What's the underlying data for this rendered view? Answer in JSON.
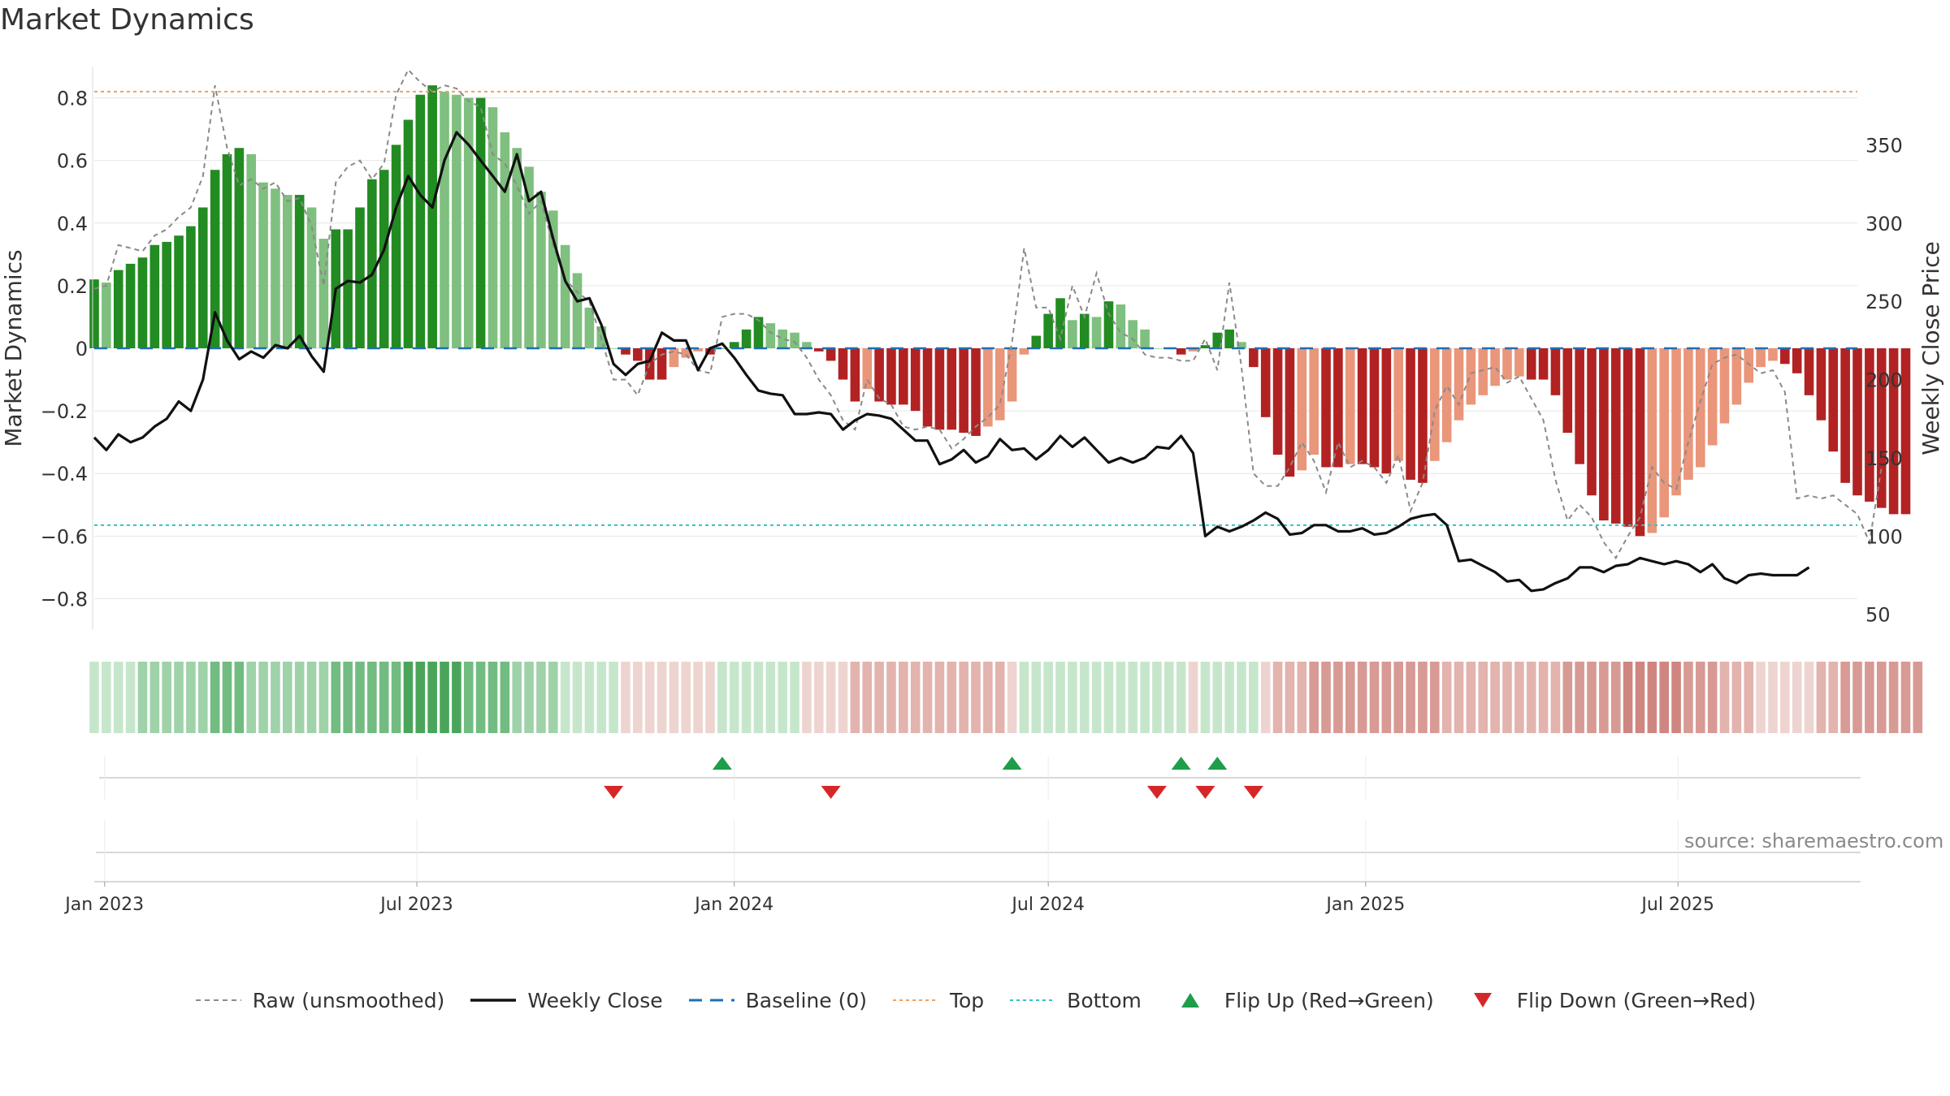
{
  "page": {
    "title": "Market Dynamics",
    "source": "source: sharemaestro.com"
  },
  "colors": {
    "strong_green": "#228b22",
    "light_green": "#7fbf7f",
    "strong_red": "#b22222",
    "light_red": "#e9967a",
    "raw_line": "#8a8a8a",
    "close_line": "#111111",
    "baseline": "#1f6fb4",
    "top": "#f0a060",
    "bottom": "#2fc4c4",
    "flip_up": "#1e9e4a",
    "flip_down": "#d62728"
  },
  "legend": {
    "raw": "Raw (unsmoothed)",
    "close": "Weekly Close",
    "baseline": "Baseline (0)",
    "top": "Top",
    "bottom": "Bottom",
    "flip_up": "Flip Up (Red→Green)",
    "flip_down": "Flip Down (Green→Red)"
  },
  "chart_data": {
    "type": "bar",
    "title": "Market Dynamics",
    "ylabel": "Market Dynamics",
    "y2label": "Weekly Close Price",
    "ylim": [
      -0.9,
      0.9
    ],
    "yticks": [
      -0.8,
      -0.6,
      -0.4,
      -0.2,
      0,
      0.2,
      0.4,
      0.6,
      0.8
    ],
    "y2lim": [
      40,
      400
    ],
    "y2ticks": [
      50,
      100,
      150,
      200,
      250,
      300,
      350
    ],
    "x_range": [
      "2022-12-26",
      "2025-10-13"
    ],
    "xticks": [
      {
        "date": "2023-01-01",
        "label": "Jan 2023"
      },
      {
        "date": "2023-07-01",
        "label": "Jul 2023"
      },
      {
        "date": "2024-01-01",
        "label": "Jan 2024"
      },
      {
        "date": "2024-07-01",
        "label": "Jul 2024"
      },
      {
        "date": "2025-01-01",
        "label": "Jan 2025"
      },
      {
        "date": "2025-07-01",
        "label": "Jul 2025"
      }
    ],
    "start_date": "2022-12-26",
    "week_days": 7,
    "top_level": 0.82,
    "bottom_level": -0.565,
    "baseline_level": 0,
    "grid": true,
    "legend_position": "bottom",
    "series": [
      {
        "name": "Market Dynamics",
        "kind": "bar",
        "values": [
          0.22,
          0.21,
          0.25,
          0.27,
          0.29,
          0.33,
          0.34,
          0.36,
          0.39,
          0.45,
          0.57,
          0.62,
          0.64,
          0.62,
          0.53,
          0.51,
          0.49,
          0.49,
          0.45,
          0.35,
          0.38,
          0.38,
          0.45,
          0.54,
          0.57,
          0.65,
          0.73,
          0.81,
          0.84,
          0.82,
          0.81,
          0.8,
          0.8,
          0.77,
          0.69,
          0.64,
          0.58,
          0.5,
          0.44,
          0.33,
          0.24,
          0.13,
          0.07,
          0.0,
          -0.02,
          -0.04,
          -0.1,
          -0.1,
          -0.06,
          -0.03,
          -0.01,
          -0.02,
          0.0,
          0.02,
          0.06,
          0.1,
          0.08,
          0.06,
          0.05,
          0.02,
          -0.01,
          -0.04,
          -0.1,
          -0.17,
          -0.13,
          -0.17,
          -0.18,
          -0.18,
          -0.2,
          -0.25,
          -0.26,
          -0.26,
          -0.27,
          -0.28,
          -0.25,
          -0.23,
          -0.17,
          -0.02,
          0.04,
          0.11,
          0.16,
          0.09,
          0.11,
          0.1,
          0.15,
          0.14,
          0.09,
          0.06,
          0.0,
          0.0,
          -0.02,
          -0.01,
          0.01,
          0.05,
          0.06,
          0.02,
          -0.06,
          -0.22,
          -0.34,
          -0.41,
          -0.39,
          -0.34,
          -0.38,
          -0.38,
          -0.37,
          -0.37,
          -0.38,
          -0.4,
          -0.36,
          -0.42,
          -0.43,
          -0.36,
          -0.3,
          -0.23,
          -0.18,
          -0.15,
          -0.12,
          -0.1,
          -0.09,
          -0.1,
          -0.1,
          -0.15,
          -0.27,
          -0.37,
          -0.47,
          -0.55,
          -0.56,
          -0.57,
          -0.6,
          -0.59,
          -0.54,
          -0.47,
          -0.42,
          -0.38,
          -0.31,
          -0.24,
          -0.18,
          -0.11,
          -0.06,
          -0.04,
          -0.05,
          -0.08,
          -0.15,
          -0.23,
          -0.33,
          -0.43,
          -0.47,
          -0.49,
          -0.51,
          -0.53,
          -0.53
        ]
      },
      {
        "name": "Raw (unsmoothed)",
        "kind": "line",
        "values": [
          0.19,
          0.2,
          0.33,
          0.32,
          0.31,
          0.36,
          0.38,
          0.42,
          0.45,
          0.55,
          0.84,
          0.64,
          0.52,
          0.54,
          0.51,
          0.53,
          0.47,
          0.48,
          0.39,
          0.2,
          0.53,
          0.58,
          0.6,
          0.54,
          0.59,
          0.81,
          0.89,
          0.85,
          0.82,
          0.84,
          0.83,
          0.79,
          0.77,
          0.62,
          0.59,
          0.52,
          0.43,
          0.47,
          0.33,
          0.22,
          0.18,
          0.15,
          0.03,
          -0.1,
          -0.1,
          -0.15,
          -0.05,
          -0.02,
          -0.01,
          -0.02,
          -0.07,
          -0.08,
          0.1,
          0.11,
          0.11,
          0.09,
          0.05,
          0.03,
          0.02,
          -0.03,
          -0.1,
          -0.15,
          -0.23,
          -0.26,
          -0.1,
          -0.16,
          -0.18,
          -0.25,
          -0.26,
          -0.25,
          -0.26,
          -0.32,
          -0.29,
          -0.25,
          -0.22,
          -0.18,
          0.02,
          0.32,
          0.13,
          0.13,
          0.03,
          0.2,
          0.1,
          0.24,
          0.11,
          0.05,
          0.03,
          -0.02,
          -0.03,
          -0.03,
          -0.04,
          -0.04,
          0.03,
          -0.07,
          0.21,
          -0.06,
          -0.4,
          -0.44,
          -0.44,
          -0.38,
          -0.3,
          -0.36,
          -0.46,
          -0.3,
          -0.38,
          -0.36,
          -0.38,
          -0.43,
          -0.34,
          -0.52,
          -0.43,
          -0.2,
          -0.12,
          -0.18,
          -0.08,
          -0.07,
          -0.06,
          -0.11,
          -0.09,
          -0.16,
          -0.23,
          -0.42,
          -0.55,
          -0.5,
          -0.54,
          -0.62,
          -0.67,
          -0.6,
          -0.54,
          -0.38,
          -0.43,
          -0.45,
          -0.3,
          -0.17,
          -0.05,
          -0.03,
          -0.02,
          -0.05,
          -0.08,
          -0.07,
          -0.14,
          -0.48,
          -0.47,
          -0.48,
          -0.47,
          -0.5,
          -0.53,
          -0.62,
          -0.38
        ]
      },
      {
        "name": "Weekly Close",
        "kind": "line",
        "axis": "y2",
        "values": [
          163,
          155,
          165,
          160,
          163,
          170,
          175,
          186,
          180,
          200,
          243,
          225,
          213,
          218,
          214,
          222,
          220,
          228,
          215,
          205,
          258,
          263,
          262,
          267,
          283,
          310,
          330,
          318,
          310,
          340,
          358,
          350,
          340,
          330,
          320,
          344,
          314,
          320,
          290,
          263,
          250,
          252,
          235,
          210,
          203,
          210,
          212,
          230,
          225,
          225,
          206,
          220,
          223,
          214,
          203,
          193,
          191,
          190,
          178,
          178,
          179,
          178,
          168,
          174,
          178,
          177,
          175,
          168,
          161,
          161,
          146,
          149,
          155,
          147,
          151,
          162,
          155,
          156,
          149,
          155,
          164,
          157,
          163,
          155,
          147,
          150,
          147,
          150,
          157,
          156,
          164,
          153,
          100,
          106,
          103,
          106,
          110,
          115,
          111,
          101,
          102,
          107,
          107,
          103,
          103,
          105,
          101,
          102,
          106,
          111,
          113,
          114,
          107,
          84,
          85,
          81,
          77,
          71,
          72,
          65,
          66,
          70,
          73,
          80,
          80,
          77,
          81,
          82,
          86,
          84,
          82,
          84,
          82,
          77,
          82,
          73,
          70,
          75,
          76,
          75,
          75,
          75,
          80
        ]
      }
    ],
    "state_strip": {
      "rows": [
        0,
        0,
        0,
        0,
        1,
        1,
        1,
        1,
        1,
        1,
        2,
        2,
        2,
        1,
        1,
        1,
        1,
        1,
        1,
        1,
        2,
        2,
        2,
        2,
        2,
        2,
        3,
        3,
        3,
        3,
        3,
        2,
        2,
        2,
        2,
        1,
        1,
        1,
        1,
        0,
        0,
        0,
        0,
        0,
        -1,
        -1,
        -1,
        -1,
        -1,
        -1,
        -1,
        -1,
        0,
        0,
        0,
        0,
        0,
        0,
        0,
        -1,
        -1,
        -1,
        -1,
        -2,
        -2,
        -2,
        -2,
        -2,
        -2,
        -2,
        -2,
        -2,
        -2,
        -2,
        -2,
        -2,
        -1,
        0,
        0,
        0,
        0,
        0,
        0,
        0,
        0,
        0,
        0,
        0,
        0,
        0,
        0,
        -1,
        0,
        0,
        0,
        0,
        0,
        -1,
        -2,
        -2,
        -2,
        -3,
        -3,
        -3,
        -3,
        -3,
        -3,
        -3,
        -3,
        -3,
        -3,
        -3,
        -2,
        -2,
        -2,
        -2,
        -2,
        -2,
        -2,
        -2,
        -2,
        -2,
        -3,
        -3,
        -3,
        -3,
        -3,
        -4,
        -4,
        -4,
        -4,
        -4,
        -3,
        -3,
        -3,
        -2,
        -2,
        -2,
        -1,
        -1,
        -1,
        -1,
        -1,
        -2,
        -2,
        -3,
        -3,
        -3,
        -3,
        -3,
        -3,
        -3
      ]
    },
    "flip_up_dates": [
      "2023-12-25",
      "2024-06-10",
      "2024-09-16",
      "2024-10-07"
    ],
    "flip_down_dates": [
      "2023-10-23",
      "2024-02-26",
      "2024-09-02",
      "2024-09-30",
      "2024-10-28"
    ]
  }
}
